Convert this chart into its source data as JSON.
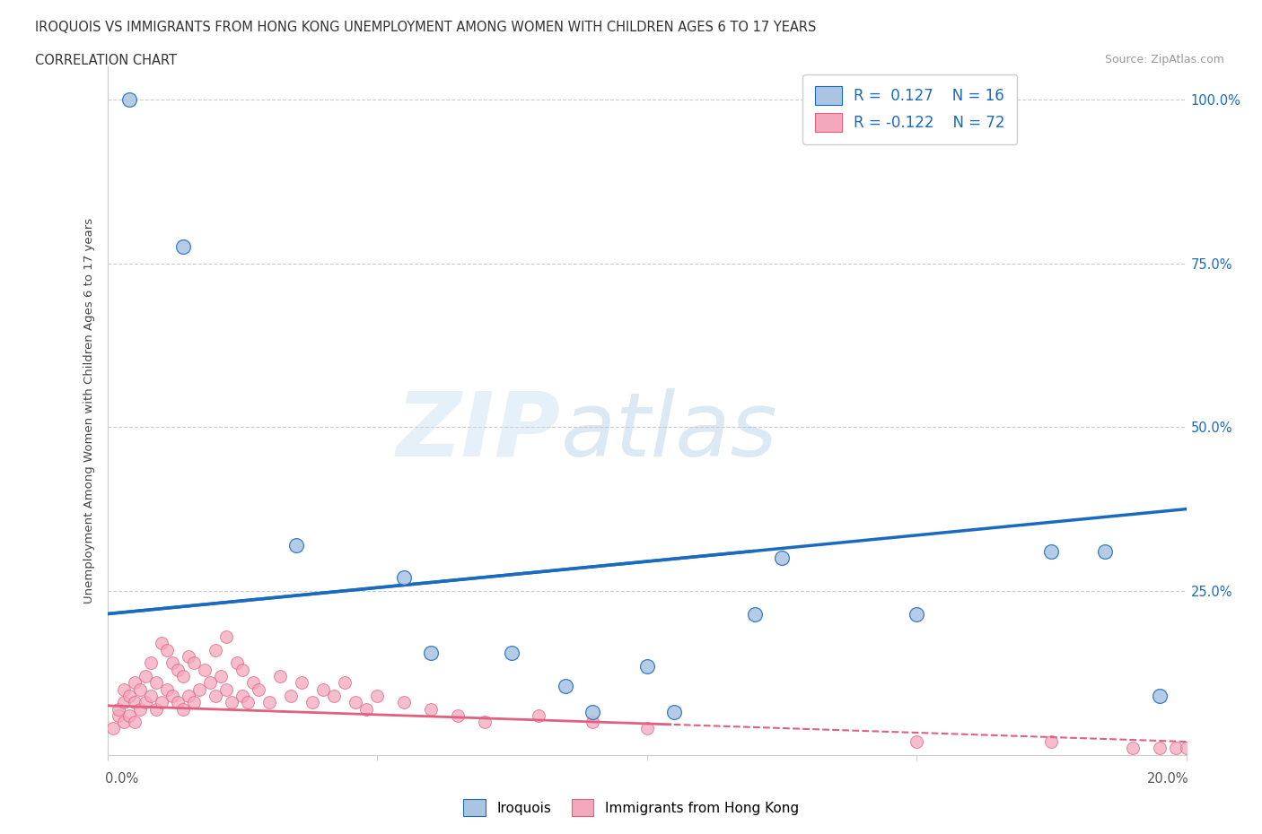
{
  "title_line1": "IROQUOIS VS IMMIGRANTS FROM HONG KONG UNEMPLOYMENT AMONG WOMEN WITH CHILDREN AGES 6 TO 17 YEARS",
  "title_line2": "CORRELATION CHART",
  "source_text": "Source: ZipAtlas.com",
  "ylabel": "Unemployment Among Women with Children Ages 6 to 17 years",
  "watermark": "ZIPatlas",
  "iroquois_color": "#aac4e2",
  "hk_color": "#f4a8bc",
  "trend_blue": "#1a6bbf",
  "trend_pink": "#e06080",
  "xmin": 0.0,
  "xmax": 0.2,
  "ymin": 0.0,
  "ymax": 1.05,
  "yticks": [
    0.0,
    0.25,
    0.5,
    0.75,
    1.0
  ],
  "ytick_labels": [
    "",
    "25.0%",
    "50.0%",
    "75.0%",
    "100.0%"
  ],
  "iroquois_x": [
    0.004,
    0.014,
    0.035,
    0.055,
    0.06,
    0.075,
    0.085,
    0.09,
    0.1,
    0.105,
    0.12,
    0.125,
    0.15,
    0.175,
    0.185,
    0.195
  ],
  "iroquois_y": [
    1.0,
    0.775,
    0.32,
    0.27,
    0.155,
    0.155,
    0.105,
    0.065,
    0.135,
    0.065,
    0.215,
    0.3,
    0.215,
    0.31,
    0.31,
    0.09
  ],
  "hk_x": [
    0.001,
    0.002,
    0.002,
    0.003,
    0.003,
    0.003,
    0.004,
    0.004,
    0.005,
    0.005,
    0.005,
    0.006,
    0.006,
    0.007,
    0.007,
    0.008,
    0.008,
    0.009,
    0.009,
    0.01,
    0.01,
    0.011,
    0.011,
    0.012,
    0.012,
    0.013,
    0.013,
    0.014,
    0.014,
    0.015,
    0.015,
    0.016,
    0.016,
    0.017,
    0.018,
    0.019,
    0.02,
    0.02,
    0.021,
    0.022,
    0.022,
    0.023,
    0.024,
    0.025,
    0.025,
    0.026,
    0.027,
    0.028,
    0.03,
    0.032,
    0.034,
    0.036,
    0.038,
    0.04,
    0.042,
    0.044,
    0.046,
    0.048,
    0.05,
    0.055,
    0.06,
    0.065,
    0.07,
    0.08,
    0.09,
    0.1,
    0.15,
    0.175,
    0.19,
    0.195,
    0.198,
    0.2
  ],
  "hk_y": [
    0.04,
    0.06,
    0.07,
    0.05,
    0.08,
    0.1,
    0.06,
    0.09,
    0.05,
    0.08,
    0.11,
    0.07,
    0.1,
    0.08,
    0.12,
    0.09,
    0.14,
    0.07,
    0.11,
    0.08,
    0.17,
    0.1,
    0.16,
    0.09,
    0.14,
    0.08,
    0.13,
    0.07,
    0.12,
    0.09,
    0.15,
    0.08,
    0.14,
    0.1,
    0.13,
    0.11,
    0.09,
    0.16,
    0.12,
    0.1,
    0.18,
    0.08,
    0.14,
    0.09,
    0.13,
    0.08,
    0.11,
    0.1,
    0.08,
    0.12,
    0.09,
    0.11,
    0.08,
    0.1,
    0.09,
    0.11,
    0.08,
    0.07,
    0.09,
    0.08,
    0.07,
    0.06,
    0.05,
    0.06,
    0.05,
    0.04,
    0.02,
    0.02,
    0.01,
    0.01,
    0.01,
    0.01
  ]
}
